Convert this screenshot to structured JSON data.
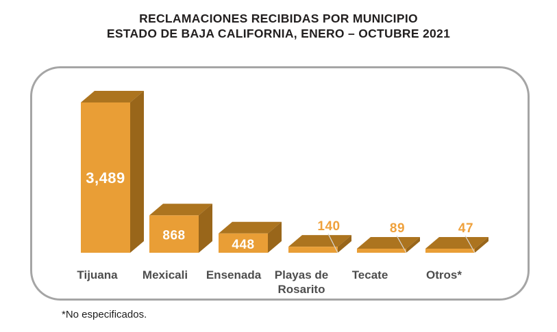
{
  "title": {
    "line1": "RECLAMACIONES RECIBIDAS POR MUNICIPIO",
    "line2": "ESTADO DE BAJA CALIFORNIA, ENERO – OCTUBRE 2021"
  },
  "footnote": {
    "text": "*No especificados."
  },
  "chart_data": {
    "type": "bar",
    "style": "3d-slab-bars",
    "title": "RECLAMACIONES RECIBIDAS POR MUNICIPIO — ESTADO DE BAJA CALIFORNIA, ENERO – OCTUBRE 2021",
    "categories": [
      "Tijuana",
      "Mexicali",
      "Ensenada",
      "Playas de Rosarito",
      "Tecate",
      "Otros*"
    ],
    "category_lines": [
      [
        "Tijuana"
      ],
      [
        "Mexicali"
      ],
      [
        "Ensenada"
      ],
      [
        "Playas de",
        "Rosarito"
      ],
      [
        "Tecate"
      ],
      [
        "Otros*"
      ]
    ],
    "values": [
      3489,
      868,
      448,
      140,
      89,
      47
    ],
    "value_labels": [
      "3,489",
      "868",
      "448",
      "140",
      "89",
      "47"
    ],
    "value_label_placement": [
      "inside",
      "inside",
      "inside",
      "above",
      "above",
      "above"
    ],
    "xlabel": "",
    "ylabel": "",
    "ylim": [
      0,
      3489
    ],
    "grid": false,
    "legend": false,
    "footnote": "*No especificados.",
    "colors": {
      "bar_front": "#E99E36",
      "bar_top": "#AC741F",
      "bar_side": "#99661A",
      "value_inside": "#FFFFFF",
      "value_above": "#EFA13C",
      "category_label": "#4D4D4D",
      "leader_line": "#D9D9D9",
      "panel_border": "#A5A5A5",
      "title_text": "#221F1F"
    }
  }
}
